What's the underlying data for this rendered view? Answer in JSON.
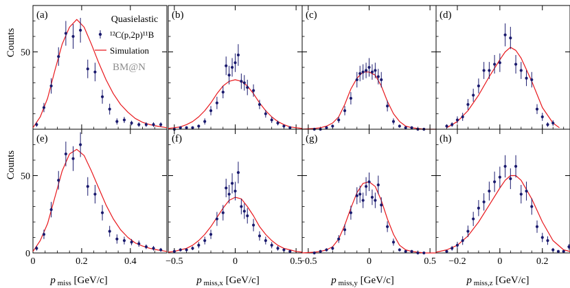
{
  "figure": {
    "ylabel": "Counts",
    "legend": {
      "title": "Quasielastic",
      "data_label": "¹²C(p,2p)¹¹B",
      "sim_label": "Simulation",
      "watermark": "BM@N"
    },
    "colors": {
      "data": "#1a1a6e",
      "sim": "#e8161b",
      "frame": "#000000",
      "watermark": "#8c8c8c"
    }
  },
  "chart_data": [
    {
      "id": "a",
      "panel_label": "(a)",
      "type": "scatter",
      "variable": "p_miss",
      "xlim": [
        0.0,
        0.55
      ],
      "ylim": [
        0,
        80
      ],
      "xticks": [
        0,
        0.2,
        0.4
      ],
      "xtick_labels": [
        "0",
        "0.2",
        "0.4"
      ],
      "yticks": [
        50
      ],
      "ytick_labels": [
        "50"
      ],
      "data": {
        "x": [
          0.015,
          0.045,
          0.075,
          0.105,
          0.135,
          0.165,
          0.195,
          0.225,
          0.255,
          0.285,
          0.315,
          0.345,
          0.375,
          0.405,
          0.435,
          0.465,
          0.495,
          0.525
        ],
        "y": [
          3,
          14,
          28,
          47,
          62,
          60,
          64,
          39,
          37,
          21,
          13,
          5,
          6,
          4,
          3,
          3,
          3,
          3
        ],
        "err": [
          1.5,
          3,
          5,
          6,
          8,
          8,
          8,
          6,
          6,
          4.5,
          3.5,
          2,
          2,
          1.5,
          1.5,
          1.5,
          1.5,
          1.5
        ]
      },
      "sim": {
        "x": [
          0.0,
          0.03,
          0.06,
          0.09,
          0.12,
          0.15,
          0.18,
          0.21,
          0.24,
          0.27,
          0.3,
          0.33,
          0.36,
          0.39,
          0.42,
          0.45,
          0.48,
          0.51,
          0.55
        ],
        "y": [
          1,
          8,
          20,
          38,
          55,
          66,
          71,
          66,
          55,
          43,
          32,
          23,
          16,
          11,
          7,
          4.5,
          3,
          2,
          1
        ]
      }
    },
    {
      "id": "b",
      "panel_label": "(b)",
      "type": "scatter",
      "variable": "p_miss,x",
      "xlim": [
        -0.55,
        0.55
      ],
      "ylim": [
        0,
        80
      ],
      "xticks": [
        -0.5,
        0,
        0.5
      ],
      "xtick_labels": [
        "−0.5",
        "0",
        "0.5"
      ],
      "yticks": [
        50
      ],
      "ytick_labels": [
        "50"
      ],
      "data": {
        "x": [
          -0.5,
          -0.45,
          -0.4,
          -0.35,
          -0.3,
          -0.25,
          -0.2,
          -0.15,
          -0.1,
          -0.075,
          -0.05,
          -0.025,
          0.0,
          0.025,
          0.05,
          0.075,
          0.1,
          0.15,
          0.2,
          0.25,
          0.3,
          0.35,
          0.4,
          0.45
        ],
        "y": [
          0,
          1,
          1,
          1,
          2,
          5,
          12,
          17,
          24,
          41,
          35,
          40,
          43,
          48,
          31,
          30,
          27,
          25,
          16,
          10,
          6,
          4,
          2,
          1
        ],
        "err": [
          0.6,
          0.8,
          0.8,
          0.8,
          1,
          2,
          3,
          4,
          4,
          6,
          6,
          6,
          6,
          7,
          5,
          5,
          5,
          4,
          3,
          2.5,
          2,
          1.5,
          1,
          0.8
        ]
      },
      "sim": {
        "x": [
          -0.55,
          -0.5,
          -0.45,
          -0.4,
          -0.35,
          -0.3,
          -0.25,
          -0.2,
          -0.15,
          -0.1,
          -0.05,
          0.0,
          0.05,
          0.1,
          0.15,
          0.2,
          0.25,
          0.3,
          0.35,
          0.4,
          0.45,
          0.5,
          0.55
        ],
        "y": [
          0.5,
          1,
          1.5,
          3,
          5,
          8,
          12,
          17,
          23,
          28,
          31,
          32,
          31,
          28,
          23,
          17,
          12,
          8,
          5,
          3,
          1.5,
          1,
          0.5
        ]
      }
    },
    {
      "id": "c",
      "panel_label": "(c)",
      "type": "scatter",
      "variable": "p_miss,y",
      "xlim": [
        -0.55,
        0.55
      ],
      "ylim": [
        0,
        80
      ],
      "xticks": [
        -0.5,
        0,
        0.5
      ],
      "xtick_labels": [
        "−0.5",
        "0",
        "0.5"
      ],
      "yticks": [
        50
      ],
      "ytick_labels": [
        "50"
      ],
      "data": {
        "x": [
          -0.45,
          -0.4,
          -0.35,
          -0.3,
          -0.25,
          -0.2,
          -0.15,
          -0.1,
          -0.075,
          -0.05,
          -0.025,
          0.0,
          0.025,
          0.05,
          0.075,
          0.1,
          0.15,
          0.2,
          0.25,
          0.3,
          0.35,
          0.4,
          0.45
        ],
        "y": [
          0,
          0,
          1,
          2,
          6,
          12,
          20,
          32,
          36,
          37,
          38,
          40,
          37,
          38,
          34,
          32,
          15,
          5,
          2,
          1,
          1,
          0,
          0
        ],
        "err": [
          0.6,
          0.6,
          0.8,
          1,
          2,
          3,
          4,
          5,
          5,
          5,
          5,
          6,
          5,
          5,
          5,
          5,
          3.5,
          2,
          1,
          0.8,
          0.8,
          0.6,
          0.6
        ]
      },
      "sim": {
        "x": [
          -0.55,
          -0.45,
          -0.4,
          -0.35,
          -0.3,
          -0.25,
          -0.2,
          -0.15,
          -0.1,
          -0.05,
          0.0,
          0.05,
          0.1,
          0.15,
          0.2,
          0.25,
          0.3,
          0.35,
          0.4,
          0.45,
          0.55
        ],
        "y": [
          0,
          0.5,
          1,
          2,
          4,
          8,
          16,
          26,
          33,
          37,
          37,
          35,
          28,
          18,
          10,
          5,
          2,
          1,
          0.5,
          0,
          0
        ]
      }
    },
    {
      "id": "d",
      "panel_label": "(d)",
      "type": "scatter",
      "variable": "p_miss,z",
      "xlim": [
        -0.3,
        0.33
      ],
      "ylim": [
        0,
        80
      ],
      "xticks": [
        -0.2,
        0,
        0.2
      ],
      "xtick_labels": [
        "−0.2",
        "0",
        "0.2"
      ],
      "yticks": [
        50
      ],
      "ytick_labels": [
        "50"
      ],
      "data": {
        "x": [
          -0.25,
          -0.225,
          -0.2,
          -0.175,
          -0.15,
          -0.125,
          -0.1,
          -0.075,
          -0.05,
          -0.025,
          0.0,
          0.025,
          0.05,
          0.075,
          0.1,
          0.125,
          0.15,
          0.175,
          0.2,
          0.225,
          0.25
        ],
        "y": [
          2,
          3,
          6,
          8,
          16,
          22,
          28,
          38,
          38,
          42,
          43,
          61,
          59,
          42,
          38,
          33,
          32,
          13,
          8,
          3,
          4
        ],
        "err": [
          1.2,
          1.5,
          2.3,
          2.6,
          3.5,
          4.2,
          4.8,
          5.5,
          5.5,
          6,
          6,
          7.4,
          7.2,
          6,
          5.5,
          5.1,
          5,
          3.2,
          2.6,
          1.5,
          1.8
        ]
      },
      "sim": {
        "x": [
          -0.25,
          -0.2,
          -0.15,
          -0.1,
          -0.05,
          0.0,
          0.025,
          0.05,
          0.075,
          0.1,
          0.15,
          0.2,
          0.25,
          0.28
        ],
        "y": [
          1,
          5,
          12,
          22,
          34,
          45,
          50,
          53,
          51,
          46,
          31,
          14,
          4,
          1
        ]
      }
    },
    {
      "id": "e",
      "panel_label": "(e)",
      "type": "scatter",
      "variable": "p_miss",
      "xlim": [
        0.0,
        0.55
      ],
      "ylim": [
        0,
        80
      ],
      "xticks": [
        0,
        0.2,
        0.4
      ],
      "xtick_labels": [
        "0",
        "0.2",
        "0.4"
      ],
      "yticks": [
        50
      ],
      "ytick_labels": [
        "50"
      ],
      "data": {
        "x": [
          0.015,
          0.045,
          0.075,
          0.105,
          0.135,
          0.165,
          0.195,
          0.225,
          0.255,
          0.285,
          0.315,
          0.345,
          0.375,
          0.405,
          0.435,
          0.465,
          0.495,
          0.525
        ],
        "y": [
          3,
          12,
          28,
          47,
          64,
          61,
          70,
          43,
          38,
          26,
          14,
          9,
          8,
          7,
          6,
          4,
          3,
          2
        ],
        "err": [
          1.5,
          3,
          5,
          6,
          8,
          8,
          8,
          6,
          6,
          5,
          3.5,
          3,
          2.5,
          2,
          2,
          1.5,
          1.5,
          1.2
        ]
      },
      "sim": {
        "x": [
          0.0,
          0.03,
          0.06,
          0.09,
          0.12,
          0.15,
          0.18,
          0.21,
          0.24,
          0.27,
          0.3,
          0.33,
          0.36,
          0.39,
          0.42,
          0.45,
          0.48,
          0.51,
          0.55
        ],
        "y": [
          1,
          8,
          19,
          36,
          53,
          64,
          67,
          63,
          53,
          42,
          31,
          22,
          15,
          10,
          6.5,
          4.5,
          3,
          2,
          1
        ]
      }
    },
    {
      "id": "f",
      "panel_label": "(f)",
      "type": "scatter",
      "variable": "p_miss,x",
      "xlim": [
        -0.55,
        0.55
      ],
      "ylim": [
        0,
        80
      ],
      "xticks": [
        -0.5,
        0,
        0.5
      ],
      "xtick_labels": [
        "−0.5",
        "0",
        "0.5"
      ],
      "yticks": [
        50
      ],
      "ytick_labels": [
        "50"
      ],
      "data": {
        "x": [
          -0.5,
          -0.45,
          -0.4,
          -0.35,
          -0.3,
          -0.25,
          -0.2,
          -0.15,
          -0.1,
          -0.075,
          -0.05,
          -0.025,
          0.0,
          0.025,
          0.05,
          0.075,
          0.1,
          0.15,
          0.2,
          0.25,
          0.3,
          0.35,
          0.4,
          0.45
        ],
        "y": [
          1,
          2,
          2,
          3,
          5,
          8,
          12,
          22,
          26,
          42,
          38,
          45,
          40,
          52,
          30,
          27,
          24,
          18,
          11,
          8,
          5,
          3,
          2,
          1
        ],
        "err": [
          0.8,
          1,
          1,
          1.2,
          2,
          2.5,
          3,
          4.5,
          5,
          6,
          6,
          6.5,
          6,
          7,
          5,
          5,
          5,
          4,
          3,
          2.5,
          2,
          1.5,
          1,
          0.8
        ]
      },
      "sim": {
        "x": [
          -0.55,
          -0.5,
          -0.45,
          -0.4,
          -0.35,
          -0.3,
          -0.25,
          -0.2,
          -0.15,
          -0.1,
          -0.05,
          0.0,
          0.05,
          0.1,
          0.15,
          0.2,
          0.25,
          0.3,
          0.35,
          0.4,
          0.45,
          0.5,
          0.55
        ],
        "y": [
          0.5,
          1,
          2,
          3,
          5,
          8,
          12,
          17,
          23,
          29,
          34,
          36,
          35,
          30,
          24,
          17,
          12,
          8,
          5,
          3,
          2,
          1,
          0.5
        ]
      }
    },
    {
      "id": "g",
      "panel_label": "(g)",
      "type": "scatter",
      "variable": "p_miss,y",
      "xlim": [
        -0.55,
        0.55
      ],
      "ylim": [
        0,
        80
      ],
      "xticks": [
        -0.5,
        0,
        0.5
      ],
      "xtick_labels": [
        "−0.5",
        "0",
        "0.5"
      ],
      "yticks": [
        50
      ],
      "ytick_labels": [
        "50"
      ],
      "data": {
        "x": [
          -0.45,
          -0.4,
          -0.35,
          -0.3,
          -0.25,
          -0.2,
          -0.15,
          -0.1,
          -0.075,
          -0.05,
          -0.025,
          0.0,
          0.025,
          0.05,
          0.075,
          0.1,
          0.15,
          0.2,
          0.25,
          0.3,
          0.35,
          0.4,
          0.45
        ],
        "y": [
          0,
          1,
          2,
          3,
          9,
          15,
          26,
          37,
          38,
          34,
          43,
          46,
          36,
          34,
          44,
          31,
          17,
          7,
          2,
          1,
          1,
          0,
          0
        ],
        "err": [
          0.6,
          0.8,
          1,
          1.2,
          2.5,
          3.5,
          4.5,
          5.5,
          5.5,
          5,
          6,
          6,
          5,
          5,
          6,
          5,
          3.5,
          2.3,
          1,
          0.8,
          0.8,
          0.6,
          0.6
        ]
      },
      "sim": {
        "x": [
          -0.55,
          -0.45,
          -0.4,
          -0.35,
          -0.3,
          -0.25,
          -0.2,
          -0.15,
          -0.1,
          -0.05,
          0.0,
          0.05,
          0.1,
          0.15,
          0.2,
          0.25,
          0.3,
          0.35,
          0.4,
          0.45,
          0.55
        ],
        "y": [
          0,
          0.5,
          1,
          2,
          4,
          9,
          18,
          29,
          39,
          45,
          46,
          43,
          34,
          22,
          12,
          5,
          2,
          1,
          0.5,
          0,
          0
        ]
      }
    },
    {
      "id": "h",
      "panel_label": "(h)",
      "type": "scatter",
      "variable": "p_miss,z",
      "xlim": [
        -0.3,
        0.33
      ],
      "ylim": [
        0,
        80
      ],
      "xticks": [
        -0.2,
        0,
        0.2
      ],
      "xtick_labels": [
        "−0.2",
        "0",
        "0.2"
      ],
      "yticks": [
        50
      ],
      "ytick_labels": [
        "50"
      ],
      "data": {
        "x": [
          -0.25,
          -0.225,
          -0.2,
          -0.175,
          -0.15,
          -0.125,
          -0.1,
          -0.075,
          -0.05,
          -0.025,
          0.0,
          0.025,
          0.05,
          0.075,
          0.1,
          0.125,
          0.15,
          0.175,
          0.2,
          0.225,
          0.25,
          0.275,
          0.3,
          0.325
        ],
        "y": [
          1,
          3,
          5,
          8,
          14,
          22,
          29,
          33,
          40,
          46,
          49,
          56,
          48,
          56,
          38,
          40,
          30,
          17,
          10,
          8,
          2,
          1,
          1,
          4
        ],
        "err": [
          0.8,
          1.5,
          2.2,
          2.8,
          3.7,
          4.6,
          5.2,
          5.6,
          6.1,
          6.6,
          6.8,
          7.2,
          6.7,
          7.2,
          6,
          6.1,
          5.3,
          4,
          3,
          2.8,
          1.2,
          0.8,
          0.8,
          1.8
        ]
      },
      "sim": {
        "x": [
          -0.3,
          -0.25,
          -0.2,
          -0.15,
          -0.1,
          -0.05,
          0.0,
          0.025,
          0.05,
          0.075,
          0.1,
          0.15,
          0.2,
          0.25,
          0.3,
          0.33
        ],
        "y": [
          0.5,
          2,
          5,
          11,
          20,
          31,
          42,
          47,
          50,
          50,
          47,
          35,
          20,
          8,
          2,
          1
        ]
      }
    }
  ]
}
